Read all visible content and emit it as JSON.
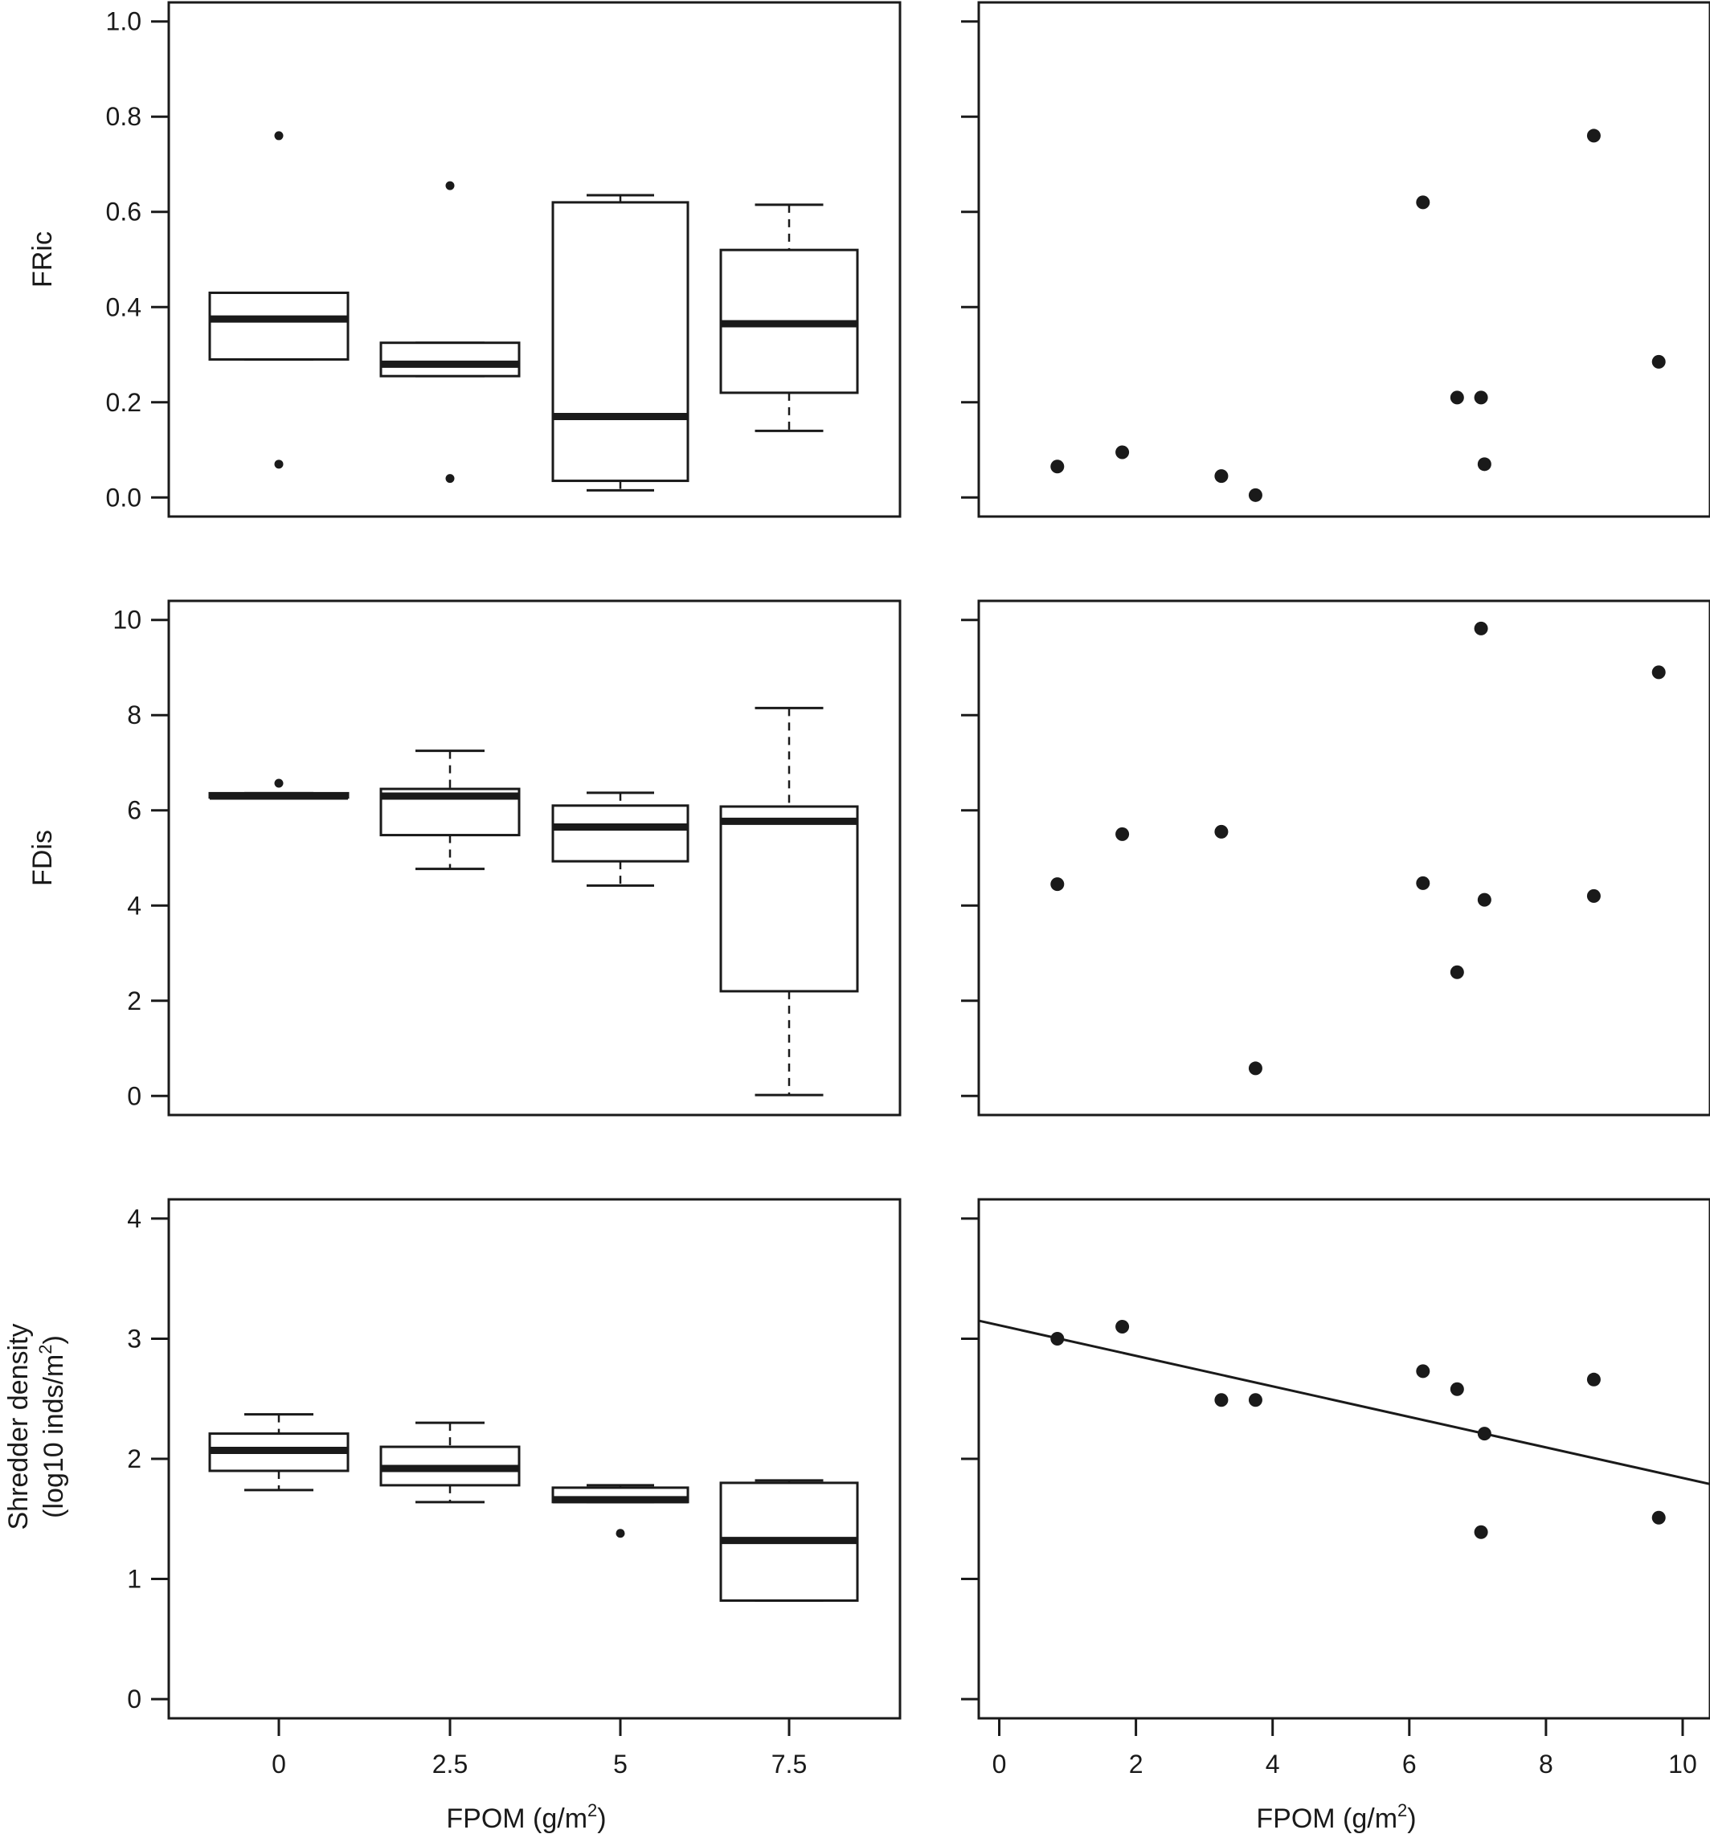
{
  "chart_data": [
    {
      "type": "box",
      "panel": "top-left",
      "ylabel": [
        "FRic"
      ],
      "xlabel": "",
      "categories": [
        "0",
        "2.5",
        "5",
        "7.5"
      ],
      "ylim": [
        -0.04,
        1.04
      ],
      "yticks": [
        0.0,
        0.2,
        0.4,
        0.6,
        0.8,
        1.0
      ],
      "ytick_labels": [
        "0.0",
        "0.2",
        "0.4",
        "0.6",
        "0.8",
        "1.0"
      ],
      "boxes": [
        {
          "category": "0",
          "q1": 0.29,
          "median": 0.375,
          "q3": 0.43,
          "whisker_low": 0.29,
          "whisker_high": 0.43,
          "outliers": [
            0.76,
            0.07
          ]
        },
        {
          "category": "2.5",
          "q1": 0.255,
          "median": 0.28,
          "q3": 0.325,
          "whisker_low": 0.255,
          "whisker_high": 0.325,
          "outliers": [
            0.655,
            0.04
          ]
        },
        {
          "category": "5",
          "q1": 0.035,
          "median": 0.17,
          "q3": 0.62,
          "whisker_low": 0.015,
          "whisker_high": 0.635,
          "outliers": []
        },
        {
          "category": "7.5",
          "q1": 0.22,
          "median": 0.365,
          "q3": 0.52,
          "whisker_low": 0.14,
          "whisker_high": 0.615,
          "outliers": []
        }
      ]
    },
    {
      "type": "scatter",
      "panel": "top-right",
      "xlabel": "",
      "xlim": [
        -0.3,
        10.4
      ],
      "ylim": [
        -0.04,
        1.04
      ],
      "yticks": [
        0.0,
        0.2,
        0.4,
        0.6,
        0.8,
        1.0
      ],
      "points": [
        {
          "x": 0.85,
          "y": 0.065
        },
        {
          "x": 1.8,
          "y": 0.095
        },
        {
          "x": 3.25,
          "y": 0.045
        },
        {
          "x": 3.75,
          "y": 0.005
        },
        {
          "x": 6.2,
          "y": 0.62
        },
        {
          "x": 6.7,
          "y": 0.21
        },
        {
          "x": 7.05,
          "y": 0.21
        },
        {
          "x": 7.1,
          "y": 0.07
        },
        {
          "x": 8.7,
          "y": 0.76
        },
        {
          "x": 9.65,
          "y": 0.285
        }
      ]
    },
    {
      "type": "box",
      "panel": "middle-left",
      "ylabel": [
        "FDis"
      ],
      "xlabel": "",
      "categories": [
        "0",
        "2.5",
        "5",
        "7.5"
      ],
      "ylim": [
        -0.4,
        10.4
      ],
      "yticks": [
        0,
        2,
        4,
        6,
        8,
        10
      ],
      "ytick_labels": [
        "0",
        "2",
        "4",
        "6",
        "8",
        "10"
      ],
      "boxes": [
        {
          "category": "0",
          "q1": 6.27,
          "median": 6.3,
          "q3": 6.36,
          "whisker_low": 6.27,
          "whisker_high": 6.36,
          "outliers": [
            6.57
          ]
        },
        {
          "category": "2.5",
          "q1": 5.48,
          "median": 6.3,
          "q3": 6.45,
          "whisker_low": 4.77,
          "whisker_high": 7.25,
          "outliers": []
        },
        {
          "category": "5",
          "q1": 4.93,
          "median": 5.65,
          "q3": 6.1,
          "whisker_low": 4.42,
          "whisker_high": 6.37,
          "outliers": []
        },
        {
          "category": "7.5",
          "q1": 2.2,
          "median": 5.77,
          "q3": 6.08,
          "whisker_low": 0.02,
          "whisker_high": 8.15,
          "outliers": []
        }
      ]
    },
    {
      "type": "scatter",
      "panel": "middle-right",
      "xlabel": "",
      "xlim": [
        -0.3,
        10.4
      ],
      "ylim": [
        -0.4,
        10.4
      ],
      "yticks": [
        0,
        2,
        4,
        6,
        8,
        10
      ],
      "points": [
        {
          "x": 0.85,
          "y": 4.45
        },
        {
          "x": 1.8,
          "y": 5.5
        },
        {
          "x": 3.25,
          "y": 5.55
        },
        {
          "x": 3.75,
          "y": 0.58
        },
        {
          "x": 6.2,
          "y": 4.47
        },
        {
          "x": 6.7,
          "y": 2.6
        },
        {
          "x": 7.05,
          "y": 9.82
        },
        {
          "x": 7.1,
          "y": 4.12
        },
        {
          "x": 8.7,
          "y": 4.2
        },
        {
          "x": 9.65,
          "y": 8.9
        }
      ]
    },
    {
      "type": "box",
      "panel": "bottom-left",
      "ylabel": [
        "Shredder density",
        "(log10 inds/m",
        "2",
        ")"
      ],
      "xlabel": [
        "FPOM (g/m",
        "2",
        ")"
      ],
      "categories": [
        "0",
        "2.5",
        "5",
        "7.5"
      ],
      "ylim": [
        -0.16,
        4.16
      ],
      "yticks": [
        0,
        1,
        2,
        3,
        4
      ],
      "ytick_labels": [
        "0",
        "1",
        "2",
        "3",
        "4"
      ],
      "boxes": [
        {
          "category": "0",
          "q1": 1.9,
          "median": 2.07,
          "q3": 2.21,
          "whisker_low": 1.74,
          "whisker_high": 2.37,
          "outliers": []
        },
        {
          "category": "2.5",
          "q1": 1.78,
          "median": 1.92,
          "q3": 2.1,
          "whisker_low": 1.64,
          "whisker_high": 2.3,
          "outliers": []
        },
        {
          "category": "5",
          "q1": 1.64,
          "median": 1.66,
          "q3": 1.76,
          "whisker_low": 1.64,
          "whisker_high": 1.78,
          "outliers": [
            1.38
          ]
        },
        {
          "category": "7.5",
          "q1": 0.82,
          "median": 1.32,
          "q3": 1.8,
          "whisker_low": 0.82,
          "whisker_high": 1.82,
          "outliers": []
        }
      ]
    },
    {
      "type": "scatter",
      "panel": "bottom-right",
      "xlabel": [
        "FPOM (g/m",
        "2",
        ")"
      ],
      "xlim": [
        -0.3,
        10.4
      ],
      "ylim": [
        -0.16,
        4.16
      ],
      "yticks": [
        0,
        1,
        2,
        3,
        4
      ],
      "xticks": [
        0,
        2,
        4,
        6,
        8,
        10
      ],
      "xtick_labels": [
        "0",
        "2",
        "4",
        "6",
        "8",
        "10"
      ],
      "points": [
        {
          "x": 0.85,
          "y": 3.0
        },
        {
          "x": 1.8,
          "y": 3.1
        },
        {
          "x": 3.25,
          "y": 2.49
        },
        {
          "x": 3.75,
          "y": 2.49
        },
        {
          "x": 6.2,
          "y": 2.73
        },
        {
          "x": 6.7,
          "y": 2.58
        },
        {
          "x": 7.05,
          "y": 1.39
        },
        {
          "x": 7.1,
          "y": 2.21
        },
        {
          "x": 8.7,
          "y": 2.66
        },
        {
          "x": 9.65,
          "y": 1.51
        }
      ],
      "fit_line": {
        "x": [
          -0.3,
          10.4
        ],
        "y": [
          3.15,
          1.79
        ]
      }
    }
  ]
}
